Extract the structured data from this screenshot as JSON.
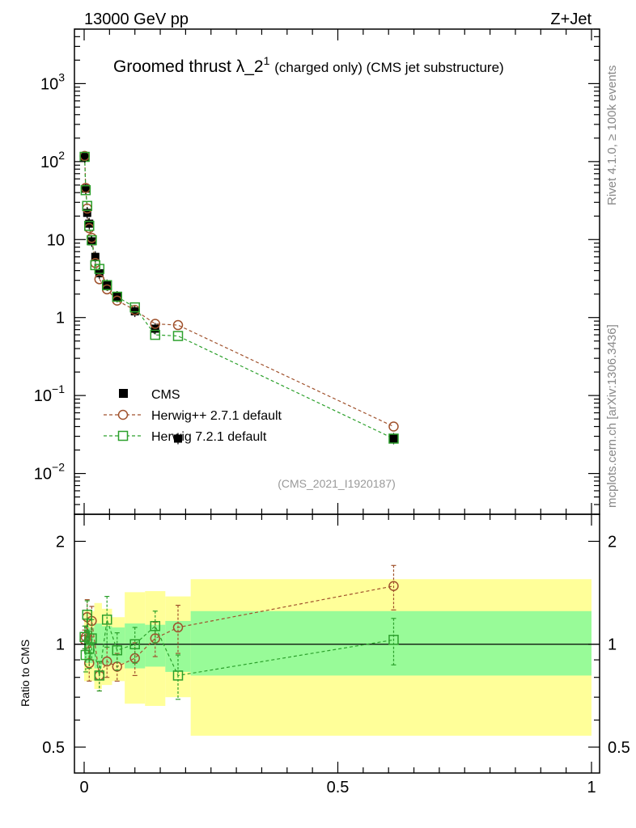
{
  "header": {
    "left": "13000 GeV pp",
    "right": "Z+Jet"
  },
  "side_labels": {
    "rivet": "Rivet 4.1.0, ≥ 100k events",
    "mcplots": "mcplots.cern.ch [arXiv:1306.3436]"
  },
  "colors": {
    "cms": "#000000",
    "herwig_pp": "#a0522d",
    "herwig7": "#2ca02c",
    "band_green": "#98fb98",
    "band_yellow": "#ffff99",
    "analysis_label": "#999999"
  },
  "chart_data": [
    {
      "type": "line",
      "scale": "log",
      "title": "Groomed thrust",
      "title_symbol": "λ_2",
      "title_sup": "1",
      "title_suffix": "(charged only) (CMS jet substructure)",
      "analysis_id": "(CMS_2021_I1920187)",
      "xlim": [
        0,
        1
      ],
      "ylim": [
        0.003,
        5000
      ],
      "yticks": [
        {
          "base": "10",
          "exp": "3",
          "value": 1000
        },
        {
          "base": "10",
          "exp": "2",
          "value": 100
        },
        {
          "base": "10",
          "exp": "",
          "value": 10
        },
        {
          "base": "1",
          "exp": "",
          "value": 1
        },
        {
          "base": "10",
          "exp": "−1",
          "value": 0.1
        },
        {
          "base": "10",
          "exp": "−2",
          "value": 0.01
        }
      ],
      "legend": [
        "CMS",
        "Herwig++ 2.7.1 default",
        "Herwig 7.2.1 default"
      ],
      "legend_position": "bottom-left",
      "series": [
        {
          "name": "CMS",
          "marker": "filled-square",
          "x": [
            0.001,
            0.003,
            0.006,
            0.01,
            0.015,
            0.022,
            0.03,
            0.045,
            0.065,
            0.1,
            0.14,
            0.185,
            0.61
          ],
          "y": [
            115,
            45,
            22,
            16,
            9.5,
            6.0,
            3.7,
            2.6,
            1.85,
            1.2,
            0.72,
            0.028,
            0.028
          ]
        },
        {
          "name": "Herwig++ 2.7.1 default",
          "marker": "open-circle",
          "x": [
            0.001,
            0.003,
            0.006,
            0.01,
            0.015,
            0.022,
            0.03,
            0.045,
            0.065,
            0.1,
            0.14,
            0.185,
            0.61
          ],
          "y": [
            118,
            46,
            25,
            14,
            10.5,
            5.0,
            3.1,
            2.3,
            1.65,
            1.25,
            0.83,
            0.8,
            0.04
          ]
        },
        {
          "name": "Herwig 7.2.1 default",
          "marker": "open-square",
          "x": [
            0.001,
            0.003,
            0.006,
            0.01,
            0.015,
            0.022,
            0.03,
            0.045,
            0.065,
            0.1,
            0.14,
            0.185,
            0.61
          ],
          "y": [
            115,
            43,
            27,
            15,
            9.8,
            4.7,
            4.2,
            2.6,
            1.85,
            1.35,
            0.6,
            0.58,
            0.028
          ]
        }
      ]
    },
    {
      "type": "line",
      "scale": "log",
      "ylabel": "Ratio to CMS",
      "xlabel": "",
      "xlim": [
        0,
        1
      ],
      "ylim": [
        0.42,
        2.4
      ],
      "xticks": [
        "0",
        "0.5",
        "1"
      ],
      "yticks": [
        {
          "label": "0.5",
          "value": 0.5
        },
        {
          "label": "1",
          "value": 1
        },
        {
          "label": "2",
          "value": 2
        }
      ],
      "bands": [
        {
          "x0": 0.0,
          "x1": 0.02,
          "green": [
            0.88,
            1.12
          ],
          "yellow": [
            0.78,
            1.25
          ]
        },
        {
          "x0": 0.02,
          "x1": 0.035,
          "green": [
            0.85,
            1.15
          ],
          "yellow": [
            0.74,
            1.32
          ]
        },
        {
          "x0": 0.035,
          "x1": 0.055,
          "green": [
            0.87,
            1.13
          ],
          "yellow": [
            0.76,
            1.27
          ]
        },
        {
          "x0": 0.055,
          "x1": 0.08,
          "green": [
            0.88,
            1.12
          ],
          "yellow": [
            0.78,
            1.2
          ]
        },
        {
          "x0": 0.08,
          "x1": 0.12,
          "green": [
            0.85,
            1.15
          ],
          "yellow": [
            0.67,
            1.42
          ]
        },
        {
          "x0": 0.12,
          "x1": 0.16,
          "green": [
            0.86,
            1.14
          ],
          "yellow": [
            0.66,
            1.43
          ]
        },
        {
          "x0": 0.16,
          "x1": 0.21,
          "green": [
            0.83,
            1.17
          ],
          "yellow": [
            0.7,
            1.38
          ]
        },
        {
          "x0": 0.21,
          "x1": 1.0,
          "green": [
            0.81,
            1.25
          ],
          "yellow": [
            0.54,
            1.55
          ]
        }
      ],
      "series": [
        {
          "name": "Herwig++ 2.7.1 default",
          "x": [
            0.001,
            0.003,
            0.006,
            0.01,
            0.015,
            0.03,
            0.045,
            0.065,
            0.1,
            0.14,
            0.185,
            0.61
          ],
          "y": [
            1.03,
            1.05,
            1.2,
            0.88,
            1.17,
            0.81,
            0.89,
            0.86,
            0.91,
            1.04,
            1.12,
            1.48
          ],
          "err": [
            0.07,
            0.08,
            0.15,
            0.1,
            0.12,
            0.08,
            0.09,
            0.08,
            0.1,
            0.12,
            0.18,
            0.22
          ]
        },
        {
          "name": "Herwig 7.2.1 default",
          "x": [
            0.001,
            0.003,
            0.006,
            0.01,
            0.015,
            0.03,
            0.045,
            0.065,
            0.1,
            0.14,
            0.185,
            0.61
          ],
          "y": [
            1.05,
            0.93,
            1.22,
            0.97,
            1.04,
            0.81,
            1.18,
            0.96,
            1.0,
            1.13,
            0.81,
            1.03
          ],
          "err": [
            0.08,
            0.1,
            0.12,
            0.12,
            0.14,
            0.08,
            0.2,
            0.12,
            0.12,
            0.12,
            0.12,
            0.16
          ]
        }
      ]
    }
  ]
}
